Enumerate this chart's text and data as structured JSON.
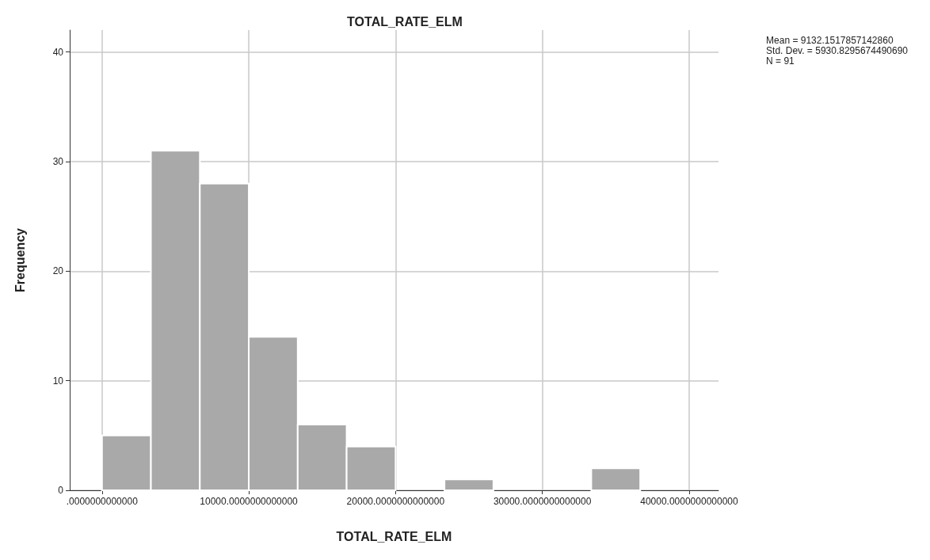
{
  "chart_data": {
    "type": "histogram",
    "title": "TOTAL_RATE_ELM",
    "xlabel": "TOTAL_RATE_ELM",
    "ylabel": "Frequency",
    "bins": [
      0,
      3333.33,
      6666.67,
      10000,
      13333.33,
      16666.67,
      20000,
      23333.33,
      26666.67,
      30000,
      33333.33,
      36666.67,
      40000
    ],
    "values": [
      5,
      31,
      28,
      14,
      6,
      4,
      0,
      1,
      0,
      0,
      2,
      0
    ],
    "color": "#a9a9a9",
    "xlim": [
      -2200,
      42000
    ],
    "xticks": [
      {
        "value": 0,
        "label": ".0000000000000"
      },
      {
        "value": 10000,
        "label": "10000.0000000000000"
      },
      {
        "value": 20000,
        "label": "20000.0000000000000"
      },
      {
        "value": 30000,
        "label": "30000.0000000000000"
      },
      {
        "value": 40000,
        "label": "40000.0000000000000"
      }
    ],
    "ylim": [
      0,
      42
    ],
    "yticks": [
      0,
      10,
      20,
      30,
      40
    ],
    "grid": true,
    "annotations": [
      "Mean = 9132.1517857142860\nStd. Dev. = 5930.8295674490690\nN = 91"
    ]
  }
}
